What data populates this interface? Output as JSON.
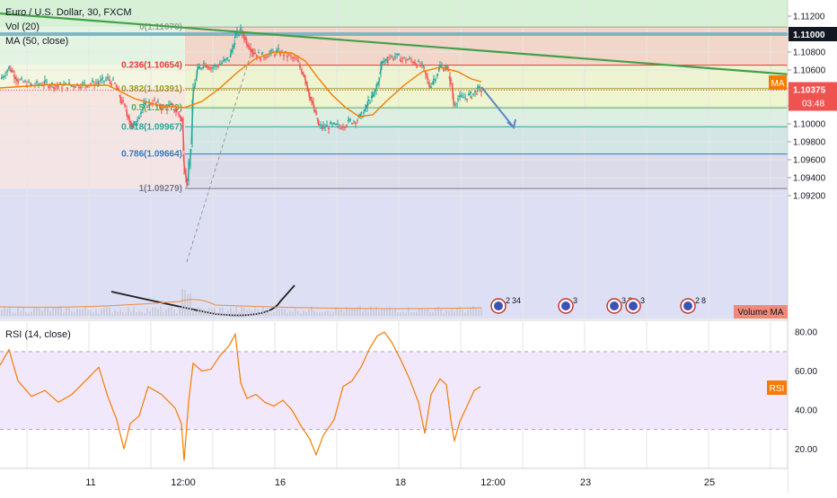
{
  "symbol_title": "Euro / U.S. Dollar, 30, FXCM",
  "indicators": {
    "vol": "Vol (20)",
    "ma": "MA (50, close)",
    "rsi": "RSI (14, close)"
  },
  "badges": {
    "ma": "MA",
    "rsi": "RSI",
    "volume_ma": "Volume MA",
    "countdown": "03:48"
  },
  "current_price": "1.10375",
  "highlight_price": "1.11000",
  "price_axis": [
    "1.11200",
    "1.11000",
    "1.10800",
    "1.10600",
    "1.10400",
    "1.10200",
    "1.10000",
    "1.09800",
    "1.09600",
    "1.09400",
    "1.09200"
  ],
  "rsi_axis": [
    "80.00",
    "60.00",
    "40.00",
    "20.00"
  ],
  "time_axis": [
    "11",
    "12:00",
    "16",
    "18",
    "12:00",
    "23",
    "25"
  ],
  "event_markers": [
    {
      "count": "2",
      "extra": "34"
    },
    {
      "count": "3",
      "extra": ""
    },
    {
      "count": "3",
      "extra": "3"
    },
    {
      "count": "3",
      "extra": ""
    },
    {
      "count": "2",
      "extra": "8"
    }
  ],
  "colors": {
    "up": "#26a69a",
    "down": "#ef5350",
    "ma": "#f57c00",
    "trend": "#43a047",
    "arrow": "#5b87c7",
    "rsi": "#f57c00",
    "rsi_band": "#7e57c2"
  },
  "chart_data": {
    "type": "candlestick",
    "title": "Euro / U.S. Dollar, 30, FXCM",
    "ylim": [
      1.0915,
      1.1125
    ],
    "fib_levels": [
      {
        "ratio": 0,
        "label": "0(1.11079)",
        "price": 1.11079
      },
      {
        "ratio": 0.236,
        "label": "0.236(1.10654)",
        "price": 1.10654
      },
      {
        "ratio": 0.382,
        "label": "0.382(1.10391)",
        "price": 1.10391
      },
      {
        "ratio": 0.5,
        "label": "0.5(1.10179)",
        "price": 1.10179
      },
      {
        "ratio": 0.618,
        "label": "0.618(1.09967)",
        "price": 1.09967
      },
      {
        "ratio": 0.786,
        "label": "0.786(1.09664)",
        "price": 1.09664
      },
      {
        "ratio": 1,
        "label": "1(1.09279)",
        "price": 1.09279
      }
    ],
    "price_path": [
      [
        0,
        1.105
      ],
      [
        10,
        1.1063
      ],
      [
        20,
        1.1048
      ],
      [
        35,
        1.1043
      ],
      [
        50,
        1.1045
      ],
      [
        65,
        1.1042
      ],
      [
        80,
        1.1043
      ],
      [
        95,
        1.1044
      ],
      [
        110,
        1.1046
      ],
      [
        120,
        1.105
      ],
      [
        128,
        1.1043
      ],
      [
        135,
        1.1025
      ],
      [
        142,
        1.101
      ],
      [
        147,
        1.0995
      ],
      [
        153,
        1.1008
      ],
      [
        160,
        1.102
      ],
      [
        170,
        1.1025
      ],
      [
        182,
        1.1017
      ],
      [
        190,
        1.102
      ],
      [
        197,
        1.1013
      ],
      [
        202,
        1.1005
      ],
      [
        205,
        1.095
      ],
      [
        208,
        1.0935
      ],
      [
        212,
        1.0975
      ],
      [
        215,
        1.104
      ],
      [
        220,
        1.106
      ],
      [
        227,
        1.1068
      ],
      [
        235,
        1.1062
      ],
      [
        245,
        1.1067
      ],
      [
        255,
        1.1073
      ],
      [
        262,
        1.1098
      ],
      [
        268,
        1.1104
      ],
      [
        275,
        1.109
      ],
      [
        282,
        1.108
      ],
      [
        290,
        1.1075
      ],
      [
        300,
        1.1078
      ],
      [
        310,
        1.108
      ],
      [
        320,
        1.1076
      ],
      [
        330,
        1.107
      ],
      [
        338,
        1.1055
      ],
      [
        345,
        1.103
      ],
      [
        350,
        1.1013
      ],
      [
        355,
        1.0997
      ],
      [
        360,
        1.0996
      ],
      [
        368,
        1.0998
      ],
      [
        378,
        1.0997
      ],
      [
        388,
        1.1002
      ],
      [
        398,
        1.1005
      ],
      [
        405,
        1.1012
      ],
      [
        410,
        1.1025
      ],
      [
        415,
        1.103
      ],
      [
        420,
        1.1045
      ],
      [
        425,
        1.1068
      ],
      [
        432,
        1.1074
      ],
      [
        440,
        1.1075
      ],
      [
        450,
        1.1072
      ],
      [
        460,
        1.107
      ],
      [
        470,
        1.1063
      ],
      [
        478,
        1.1042
      ],
      [
        483,
        1.105
      ],
      [
        490,
        1.1064
      ],
      [
        497,
        1.1062
      ],
      [
        502,
        1.1045
      ],
      [
        505,
        1.1022
      ],
      [
        510,
        1.1028
      ],
      [
        518,
        1.103
      ],
      [
        525,
        1.1032
      ],
      [
        532,
        1.1038
      ],
      [
        536,
        1.10375
      ]
    ],
    "ma_path": [
      [
        0,
        1.104
      ],
      [
        30,
        1.1042
      ],
      [
        60,
        1.1044
      ],
      [
        90,
        1.1043
      ],
      [
        120,
        1.1043
      ],
      [
        150,
        1.1028
      ],
      [
        180,
        1.102
      ],
      [
        205,
        1.1018
      ],
      [
        225,
        1.1025
      ],
      [
        245,
        1.104
      ],
      [
        265,
        1.1058
      ],
      [
        285,
        1.1073
      ],
      [
        305,
        1.108
      ],
      [
        325,
        1.1079
      ],
      [
        340,
        1.107
      ],
      [
        355,
        1.105
      ],
      [
        370,
        1.1032
      ],
      [
        385,
        1.1018
      ],
      [
        400,
        1.1008
      ],
      [
        415,
        1.101
      ],
      [
        430,
        1.1025
      ],
      [
        450,
        1.1043
      ],
      [
        470,
        1.1058
      ],
      [
        490,
        1.1063
      ],
      [
        510,
        1.1058
      ],
      [
        525,
        1.105
      ],
      [
        536,
        1.1047
      ]
    ],
    "rsi_path": [
      [
        0,
        63
      ],
      [
        10,
        71
      ],
      [
        20,
        55
      ],
      [
        35,
        47
      ],
      [
        50,
        50
      ],
      [
        65,
        44
      ],
      [
        80,
        48
      ],
      [
        95,
        55
      ],
      [
        110,
        62
      ],
      [
        120,
        47
      ],
      [
        130,
        35
      ],
      [
        138,
        20
      ],
      [
        145,
        33
      ],
      [
        155,
        37
      ],
      [
        165,
        52
      ],
      [
        180,
        48
      ],
      [
        195,
        41
      ],
      [
        202,
        33
      ],
      [
        205,
        14
      ],
      [
        210,
        44
      ],
      [
        215,
        64
      ],
      [
        225,
        60
      ],
      [
        235,
        61
      ],
      [
        245,
        68
      ],
      [
        255,
        73
      ],
      [
        262,
        79
      ],
      [
        268,
        54
      ],
      [
        275,
        46
      ],
      [
        285,
        48
      ],
      [
        295,
        44
      ],
      [
        305,
        42
      ],
      [
        315,
        45
      ],
      [
        325,
        40
      ],
      [
        335,
        32
      ],
      [
        345,
        25
      ],
      [
        352,
        17
      ],
      [
        360,
        27
      ],
      [
        372,
        35
      ],
      [
        382,
        52
      ],
      [
        392,
        55
      ],
      [
        402,
        62
      ],
      [
        412,
        72
      ],
      [
        420,
        78
      ],
      [
        428,
        80
      ],
      [
        436,
        75
      ],
      [
        446,
        66
      ],
      [
        456,
        56
      ],
      [
        466,
        44
      ],
      [
        473,
        28
      ],
      [
        480,
        48
      ],
      [
        490,
        56
      ],
      [
        497,
        53
      ],
      [
        502,
        35
      ],
      [
        506,
        24
      ],
      [
        512,
        34
      ],
      [
        520,
        42
      ],
      [
        528,
        50
      ],
      [
        535,
        52
      ]
    ],
    "rsi_ylim": [
      10,
      87
    ],
    "rsi_bands": [
      30,
      70
    ],
    "trendline": [
      [
        0,
        1.1123
      ],
      [
        932,
        1.1051
      ]
    ],
    "horizontal_level": 1.11,
    "projection_arrow": {
      "from": [
        536,
        1.1041
      ],
      "to": [
        572,
        1.0996
      ]
    }
  }
}
